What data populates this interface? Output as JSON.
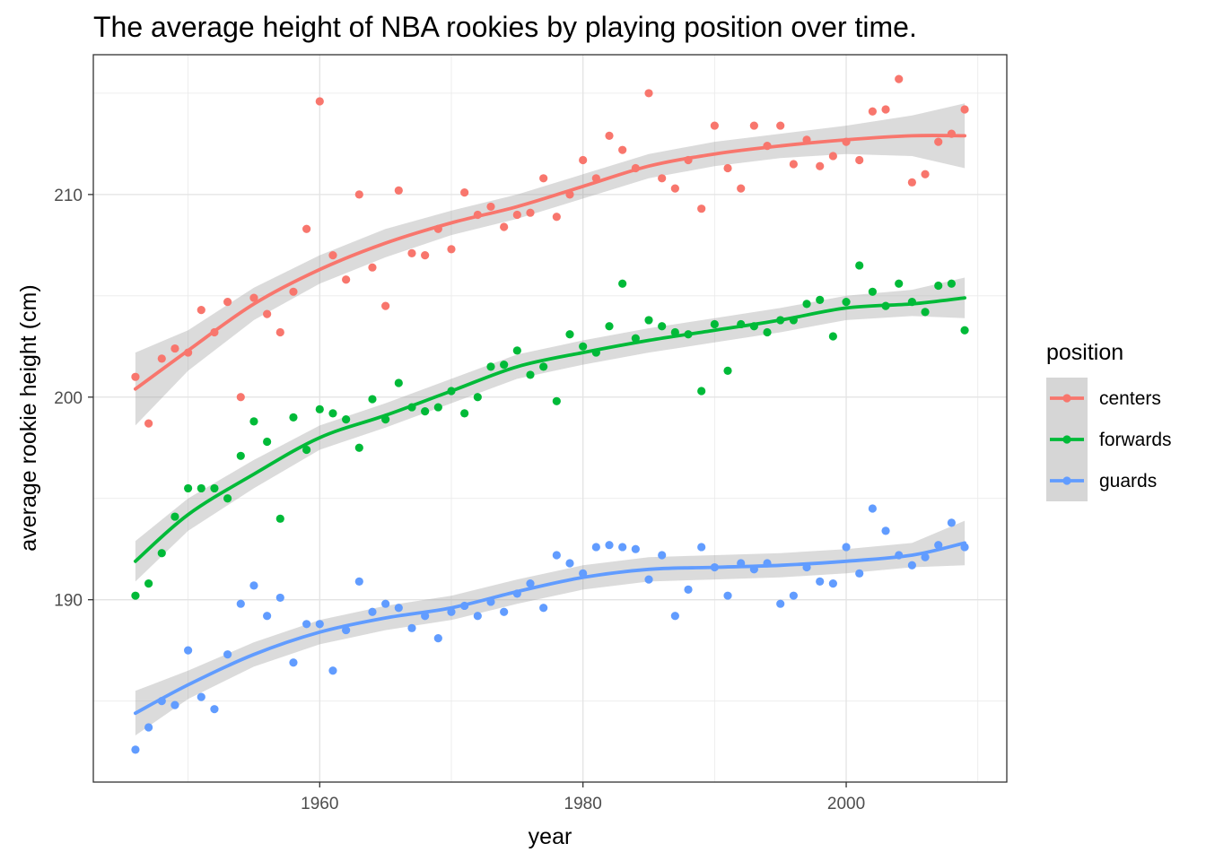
{
  "chart_data": {
    "type": "scatter",
    "title": "The average height of NBA rookies by playing position over time.",
    "xlabel": "year",
    "ylabel": "average rookie height (cm)",
    "xlim": [
      1942.8,
      2012.2
    ],
    "ylim": [
      181.0,
      216.9
    ],
    "x_ticks": [
      1960,
      1980,
      2000
    ],
    "y_ticks": [
      190,
      200,
      210
    ],
    "grid": true,
    "legend": {
      "title": "position",
      "placement": "right"
    },
    "series": [
      {
        "name": "centers",
        "color": "#f8766d",
        "points": [
          [
            1946,
            201.0
          ],
          [
            1947,
            198.7
          ],
          [
            1948,
            201.9
          ],
          [
            1949,
            202.4
          ],
          [
            1950,
            202.2
          ],
          [
            1951,
            204.3
          ],
          [
            1952,
            203.2
          ],
          [
            1953,
            204.7
          ],
          [
            1954,
            200.0
          ],
          [
            1955,
            204.9
          ],
          [
            1956,
            204.1
          ],
          [
            1957,
            203.2
          ],
          [
            1958,
            205.2
          ],
          [
            1959,
            208.3
          ],
          [
            1960,
            214.6
          ],
          [
            1961,
            207.0
          ],
          [
            1962,
            205.8
          ],
          [
            1963,
            210.0
          ],
          [
            1964,
            206.4
          ],
          [
            1965,
            204.5
          ],
          [
            1966,
            210.2
          ],
          [
            1967,
            207.1
          ],
          [
            1968,
            207.0
          ],
          [
            1969,
            208.3
          ],
          [
            1970,
            207.3
          ],
          [
            1971,
            210.1
          ],
          [
            1972,
            209.0
          ],
          [
            1973,
            209.4
          ],
          [
            1974,
            208.4
          ],
          [
            1975,
            209.0
          ],
          [
            1976,
            209.1
          ],
          [
            1977,
            210.8
          ],
          [
            1978,
            208.9
          ],
          [
            1979,
            210.0
          ],
          [
            1980,
            211.7
          ],
          [
            1981,
            210.8
          ],
          [
            1982,
            212.9
          ],
          [
            1983,
            212.2
          ],
          [
            1984,
            211.3
          ],
          [
            1985,
            215.0
          ],
          [
            1986,
            210.8
          ],
          [
            1987,
            210.3
          ],
          [
            1988,
            211.7
          ],
          [
            1989,
            209.3
          ],
          [
            1990,
            213.4
          ],
          [
            1991,
            211.3
          ],
          [
            1992,
            210.3
          ],
          [
            1993,
            213.4
          ],
          [
            1994,
            212.4
          ],
          [
            1995,
            213.4
          ],
          [
            1996,
            211.5
          ],
          [
            1997,
            212.7
          ],
          [
            1998,
            211.4
          ],
          [
            1999,
            211.9
          ],
          [
            2000,
            212.6
          ],
          [
            2001,
            211.7
          ],
          [
            2002,
            214.1
          ],
          [
            2003,
            214.2
          ],
          [
            2004,
            215.7
          ],
          [
            2005,
            210.6
          ],
          [
            2006,
            211.0
          ],
          [
            2007,
            212.6
          ],
          [
            2008,
            213.0
          ],
          [
            2009,
            214.2
          ]
        ],
        "trend": [
          [
            1946,
            200.4
          ],
          [
            1950,
            202.3
          ],
          [
            1955,
            204.6
          ],
          [
            1960,
            206.3
          ],
          [
            1965,
            207.6
          ],
          [
            1970,
            208.6
          ],
          [
            1975,
            209.4
          ],
          [
            1980,
            210.4
          ],
          [
            1985,
            211.4
          ],
          [
            1990,
            212.0
          ],
          [
            1995,
            212.4
          ],
          [
            2000,
            212.7
          ],
          [
            2005,
            212.9
          ],
          [
            2009,
            212.9
          ]
        ],
        "band": [
          [
            1946,
            198.6,
            202.2
          ],
          [
            1950,
            201.3,
            203.3
          ],
          [
            1955,
            203.8,
            205.4
          ],
          [
            1960,
            205.6,
            207.0
          ],
          [
            1965,
            206.9,
            208.3
          ],
          [
            1970,
            208.0,
            209.2
          ],
          [
            1975,
            208.8,
            210.0
          ],
          [
            1980,
            209.8,
            211.0
          ],
          [
            1985,
            210.8,
            212.0
          ],
          [
            1990,
            211.4,
            212.6
          ],
          [
            1995,
            211.8,
            213.0
          ],
          [
            2000,
            212.0,
            213.4
          ],
          [
            2005,
            211.9,
            213.9
          ],
          [
            2009,
            211.3,
            214.5
          ]
        ]
      },
      {
        "name": "forwards",
        "color": "#00ba38",
        "points": [
          [
            1946,
            190.2
          ],
          [
            1947,
            190.8
          ],
          [
            1948,
            192.3
          ],
          [
            1949,
            194.1
          ],
          [
            1950,
            195.5
          ],
          [
            1951,
            195.5
          ],
          [
            1952,
            195.5
          ],
          [
            1953,
            195.0
          ],
          [
            1954,
            197.1
          ],
          [
            1955,
            198.8
          ],
          [
            1956,
            197.8
          ],
          [
            1957,
            194.0
          ],
          [
            1958,
            199.0
          ],
          [
            1959,
            197.4
          ],
          [
            1960,
            199.4
          ],
          [
            1961,
            199.2
          ],
          [
            1962,
            198.9
          ],
          [
            1963,
            197.5
          ],
          [
            1964,
            199.9
          ],
          [
            1965,
            198.9
          ],
          [
            1966,
            200.7
          ],
          [
            1967,
            199.5
          ],
          [
            1968,
            199.3
          ],
          [
            1969,
            199.5
          ],
          [
            1970,
            200.3
          ],
          [
            1971,
            199.2
          ],
          [
            1972,
            200.0
          ],
          [
            1973,
            201.5
          ],
          [
            1974,
            201.6
          ],
          [
            1975,
            202.3
          ],
          [
            1976,
            201.1
          ],
          [
            1977,
            201.5
          ],
          [
            1978,
            199.8
          ],
          [
            1979,
            203.1
          ],
          [
            1980,
            202.5
          ],
          [
            1981,
            202.2
          ],
          [
            1982,
            203.5
          ],
          [
            1983,
            205.6
          ],
          [
            1984,
            202.9
          ],
          [
            1985,
            203.8
          ],
          [
            1986,
            203.5
          ],
          [
            1987,
            203.2
          ],
          [
            1988,
            203.1
          ],
          [
            1989,
            200.3
          ],
          [
            1990,
            203.6
          ],
          [
            1991,
            201.3
          ],
          [
            1992,
            203.6
          ],
          [
            1993,
            203.5
          ],
          [
            1994,
            203.2
          ],
          [
            1995,
            203.8
          ],
          [
            1996,
            203.8
          ],
          [
            1997,
            204.6
          ],
          [
            1998,
            204.8
          ],
          [
            1999,
            203.0
          ],
          [
            2000,
            204.7
          ],
          [
            2001,
            206.5
          ],
          [
            2002,
            205.2
          ],
          [
            2003,
            204.5
          ],
          [
            2004,
            205.6
          ],
          [
            2005,
            204.7
          ],
          [
            2006,
            204.2
          ],
          [
            2007,
            205.5
          ],
          [
            2008,
            205.6
          ],
          [
            2009,
            203.3
          ]
        ],
        "trend": [
          [
            1946,
            191.9
          ],
          [
            1950,
            194.2
          ],
          [
            1955,
            196.2
          ],
          [
            1960,
            198.0
          ],
          [
            1965,
            199.1
          ],
          [
            1970,
            200.3
          ],
          [
            1975,
            201.5
          ],
          [
            1980,
            202.2
          ],
          [
            1985,
            202.8
          ],
          [
            1990,
            203.3
          ],
          [
            1995,
            203.8
          ],
          [
            2000,
            204.4
          ],
          [
            2005,
            204.6
          ],
          [
            2009,
            204.9
          ]
        ],
        "band": [
          [
            1946,
            190.9,
            192.9
          ],
          [
            1950,
            193.4,
            195.0
          ],
          [
            1955,
            195.5,
            196.9
          ],
          [
            1960,
            197.4,
            198.6
          ],
          [
            1965,
            198.5,
            199.7
          ],
          [
            1970,
            199.7,
            200.9
          ],
          [
            1975,
            200.9,
            202.1
          ],
          [
            1980,
            201.6,
            202.8
          ],
          [
            1985,
            202.2,
            203.4
          ],
          [
            1990,
            202.7,
            203.9
          ],
          [
            1995,
            203.2,
            204.4
          ],
          [
            2000,
            203.8,
            205.0
          ],
          [
            2005,
            204.0,
            205.3
          ],
          [
            2009,
            203.9,
            205.9
          ]
        ]
      },
      {
        "name": "guards",
        "color": "#619cff",
        "points": [
          [
            1946,
            182.6
          ],
          [
            1947,
            183.7
          ],
          [
            1948,
            185.0
          ],
          [
            1949,
            184.8
          ],
          [
            1950,
            187.5
          ],
          [
            1951,
            185.2
          ],
          [
            1952,
            184.6
          ],
          [
            1953,
            187.3
          ],
          [
            1954,
            189.8
          ],
          [
            1955,
            190.7
          ],
          [
            1956,
            189.2
          ],
          [
            1957,
            190.1
          ],
          [
            1958,
            186.9
          ],
          [
            1959,
            188.8
          ],
          [
            1960,
            188.8
          ],
          [
            1961,
            186.5
          ],
          [
            1962,
            188.5
          ],
          [
            1963,
            190.9
          ],
          [
            1964,
            189.4
          ],
          [
            1965,
            189.8
          ],
          [
            1966,
            189.6
          ],
          [
            1967,
            188.6
          ],
          [
            1968,
            189.2
          ],
          [
            1969,
            188.1
          ],
          [
            1970,
            189.4
          ],
          [
            1971,
            189.7
          ],
          [
            1972,
            189.2
          ],
          [
            1973,
            189.9
          ],
          [
            1974,
            189.4
          ],
          [
            1975,
            190.3
          ],
          [
            1976,
            190.8
          ],
          [
            1977,
            189.6
          ],
          [
            1978,
            192.2
          ],
          [
            1979,
            191.8
          ],
          [
            1980,
            191.3
          ],
          [
            1981,
            192.6
          ],
          [
            1982,
            192.7
          ],
          [
            1983,
            192.6
          ],
          [
            1984,
            192.5
          ],
          [
            1985,
            191.0
          ],
          [
            1986,
            192.2
          ],
          [
            1987,
            189.2
          ],
          [
            1988,
            190.5
          ],
          [
            1989,
            192.6
          ],
          [
            1990,
            191.6
          ],
          [
            1991,
            190.2
          ],
          [
            1992,
            191.8
          ],
          [
            1993,
            191.5
          ],
          [
            1994,
            191.8
          ],
          [
            1995,
            189.8
          ],
          [
            1996,
            190.2
          ],
          [
            1997,
            191.6
          ],
          [
            1998,
            190.9
          ],
          [
            1999,
            190.8
          ],
          [
            2000,
            192.6
          ],
          [
            2001,
            191.3
          ],
          [
            2002,
            194.5
          ],
          [
            2003,
            193.4
          ],
          [
            2004,
            192.2
          ],
          [
            2005,
            191.7
          ],
          [
            2006,
            192.1
          ],
          [
            2007,
            192.7
          ],
          [
            2008,
            193.8
          ],
          [
            2009,
            192.6
          ]
        ],
        "trend": [
          [
            1946,
            184.4
          ],
          [
            1950,
            185.8
          ],
          [
            1955,
            187.3
          ],
          [
            1960,
            188.4
          ],
          [
            1965,
            189.1
          ],
          [
            1970,
            189.6
          ],
          [
            1975,
            190.4
          ],
          [
            1980,
            191.1
          ],
          [
            1985,
            191.5
          ],
          [
            1990,
            191.6
          ],
          [
            1995,
            191.7
          ],
          [
            2000,
            191.9
          ],
          [
            2005,
            192.2
          ],
          [
            2009,
            192.8
          ]
        ],
        "band": [
          [
            1946,
            183.3,
            185.5
          ],
          [
            1950,
            185.1,
            186.5
          ],
          [
            1955,
            186.7,
            187.9
          ],
          [
            1960,
            187.8,
            189.0
          ],
          [
            1965,
            188.5,
            189.7
          ],
          [
            1970,
            189.0,
            190.2
          ],
          [
            1975,
            189.8,
            191.0
          ],
          [
            1980,
            190.5,
            191.7
          ],
          [
            1985,
            190.9,
            192.1
          ],
          [
            1990,
            191.0,
            192.2
          ],
          [
            1995,
            191.1,
            192.3
          ],
          [
            2000,
            191.3,
            192.5
          ],
          [
            2005,
            191.6,
            192.8
          ],
          [
            2009,
            191.7,
            193.9
          ]
        ]
      }
    ]
  }
}
